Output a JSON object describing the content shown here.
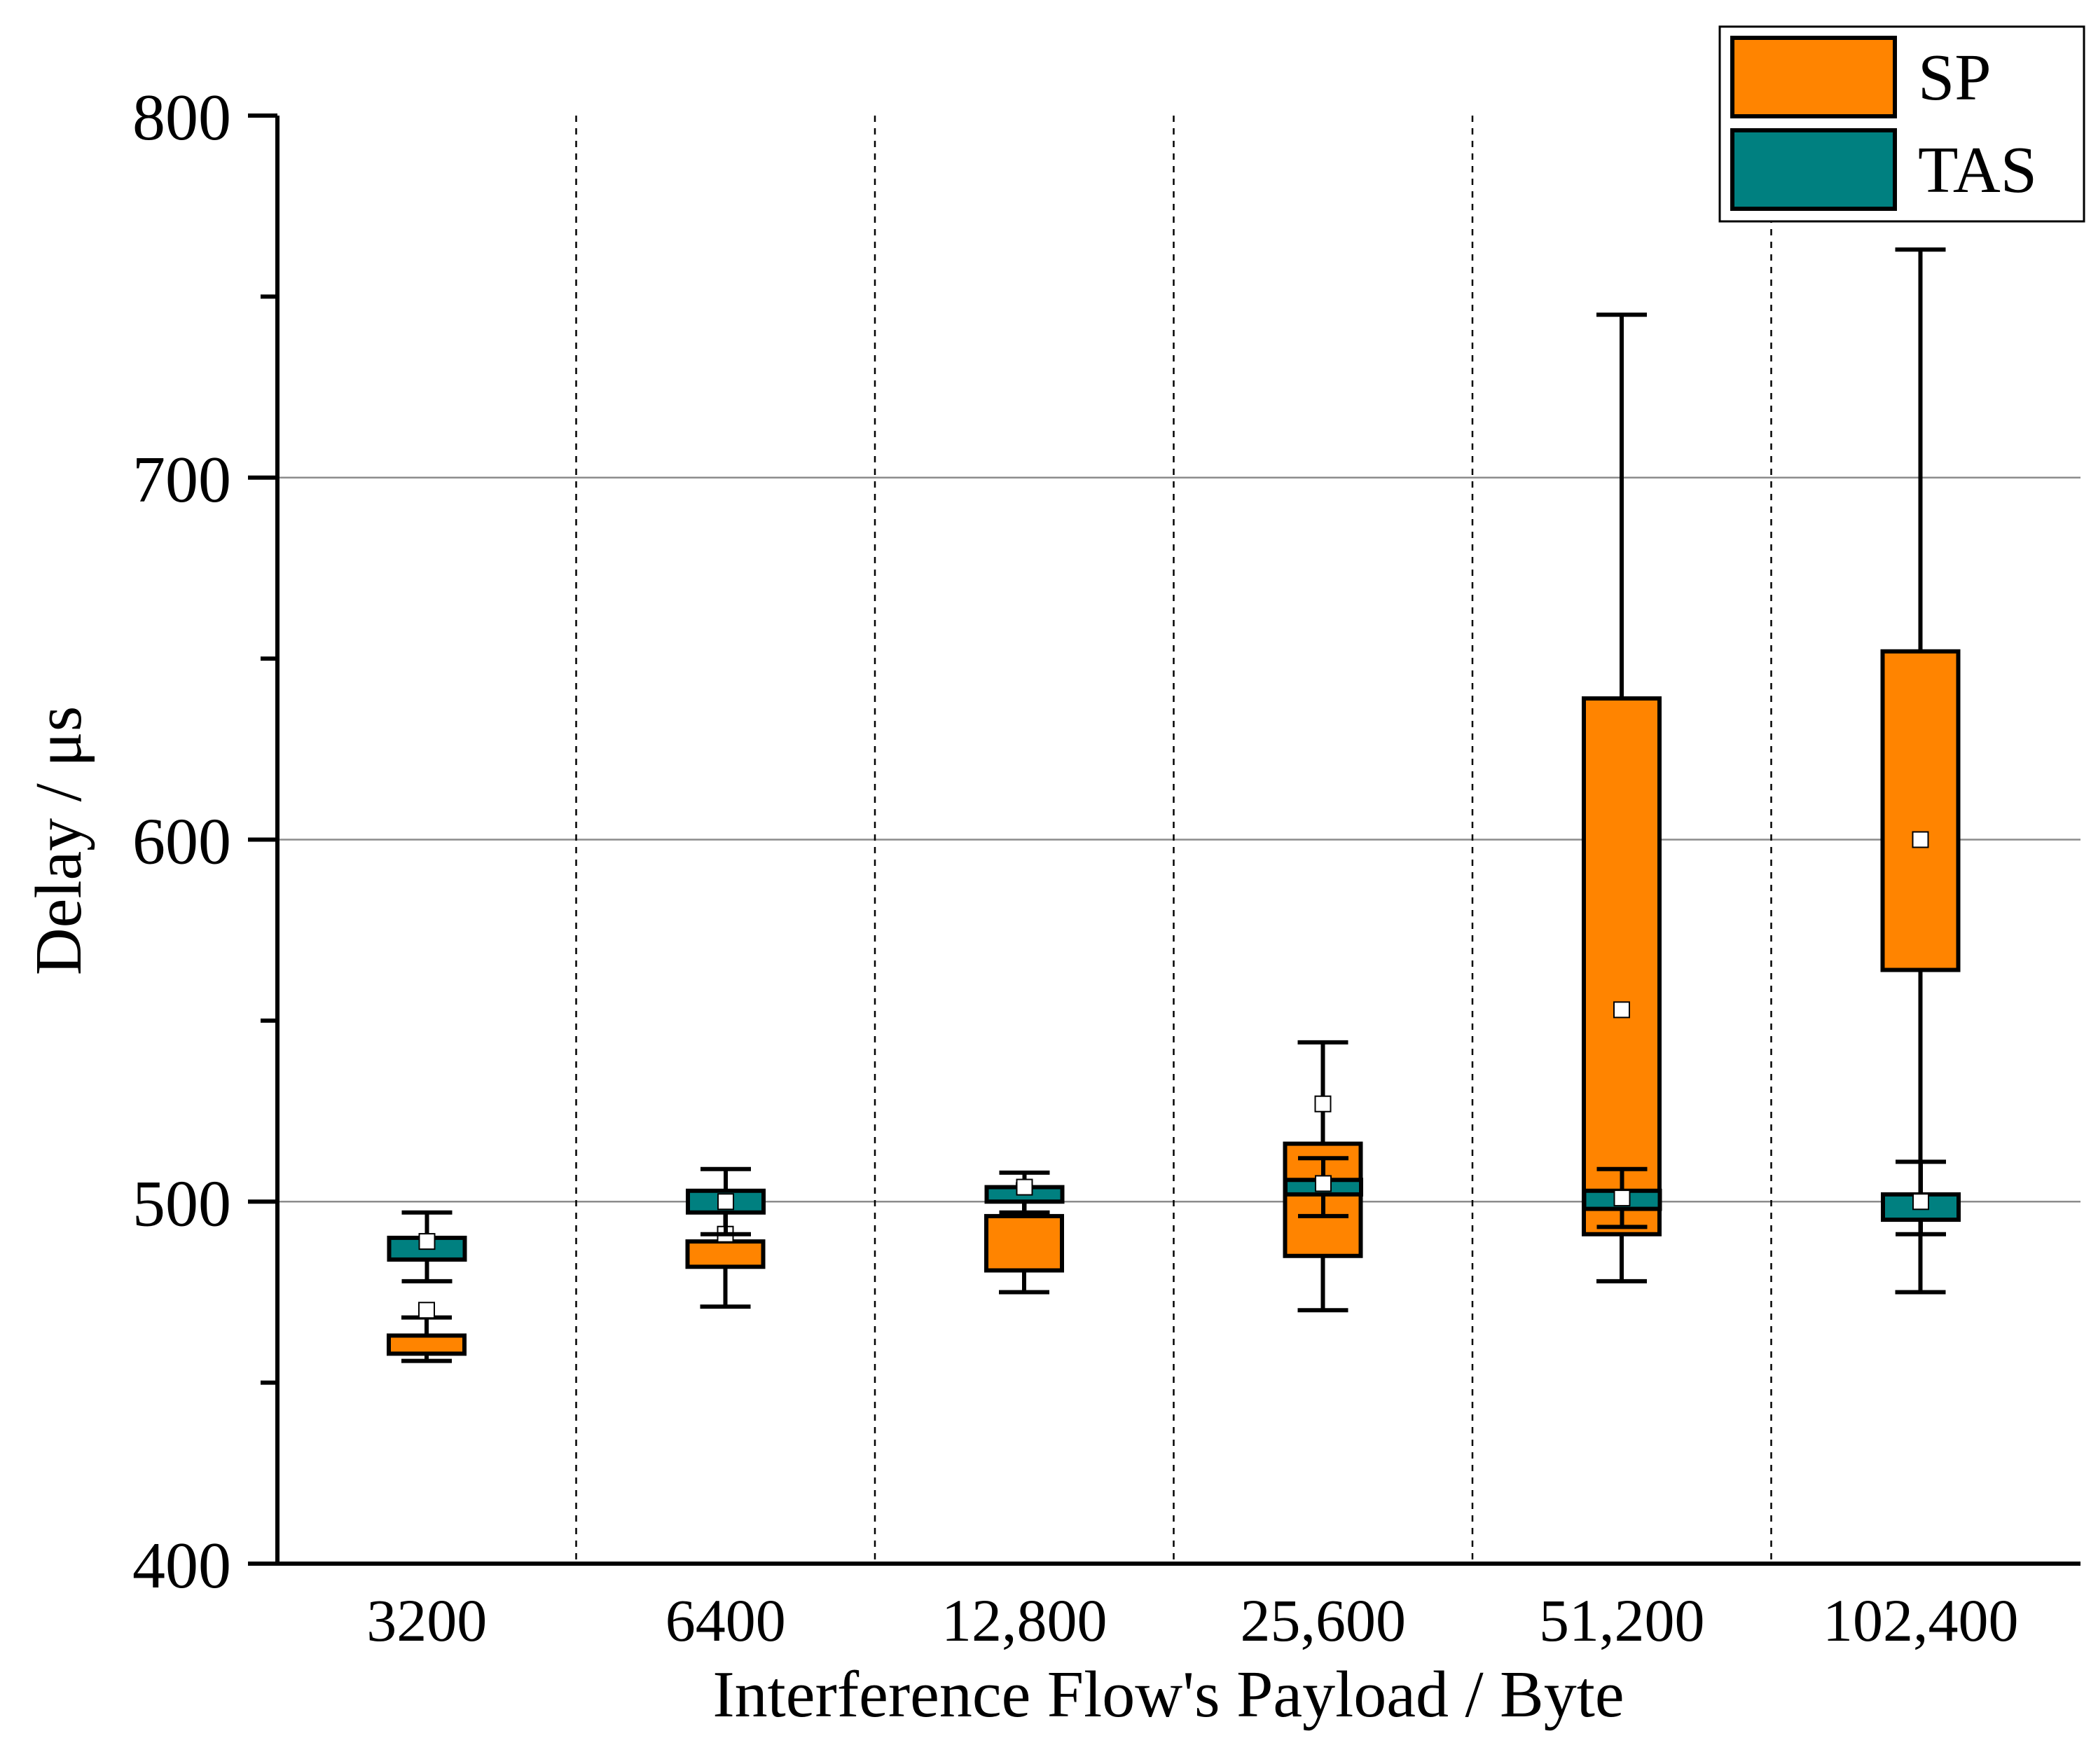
{
  "chart_data": {
    "type": "box",
    "title": "",
    "xlabel": "Interference Flow's Payload / Byte",
    "ylabel": "Delay / μs",
    "ylim": [
      400,
      800
    ],
    "yticks": [
      400,
      500,
      600,
      700,
      800
    ],
    "yticks_labeled": [
      "400",
      "500",
      "600",
      "700",
      "800"
    ],
    "grid_y": [
      500,
      600,
      700
    ],
    "categories": [
      "3200",
      "6400",
      "12,800",
      "25,600",
      "51,200",
      "102,400"
    ],
    "legend_position": "top-right",
    "series": [
      {
        "name": "SP",
        "color": "#ff8400",
        "boxes": [
          {
            "min": 456,
            "q1": 458,
            "median": 460,
            "q3": 463,
            "max": 468,
            "mean": 470
          },
          {
            "min": 471,
            "q1": 482,
            "median": 486,
            "q3": 489,
            "max": 498,
            "mean": 491
          },
          {
            "min": 475,
            "q1": 481,
            "median": 489,
            "q3": 496,
            "max": 503,
            "mean": 503
          },
          {
            "min": 470,
            "q1": 485,
            "median": 500,
            "q3": 516,
            "max": 544,
            "mean": 527
          },
          {
            "min": 478,
            "q1": 491,
            "median": 565,
            "q3": 639,
            "max": 745,
            "mean": 553
          },
          {
            "min": 475,
            "q1": 564,
            "median": 608,
            "q3": 652,
            "max": 763,
            "mean": 600
          }
        ]
      },
      {
        "name": "TAS",
        "color": "#008080",
        "boxes": [
          {
            "min": 478,
            "q1": 484,
            "median": 487,
            "q3": 490,
            "max": 497,
            "mean": 489
          },
          {
            "min": 491,
            "q1": 497,
            "median": 500,
            "q3": 503,
            "max": 509,
            "mean": 500
          },
          {
            "min": 497,
            "q1": 500,
            "median": 502,
            "q3": 504,
            "max": 508,
            "mean": 504
          },
          {
            "min": 496,
            "q1": 502,
            "median": 504,
            "q3": 506,
            "max": 512,
            "mean": 505
          },
          {
            "min": 493,
            "q1": 498,
            "median": 500,
            "q3": 503,
            "max": 509,
            "mean": 501
          },
          {
            "min": 491,
            "q1": 495,
            "median": 498,
            "q3": 502,
            "max": 511,
            "mean": 500
          }
        ]
      }
    ]
  }
}
